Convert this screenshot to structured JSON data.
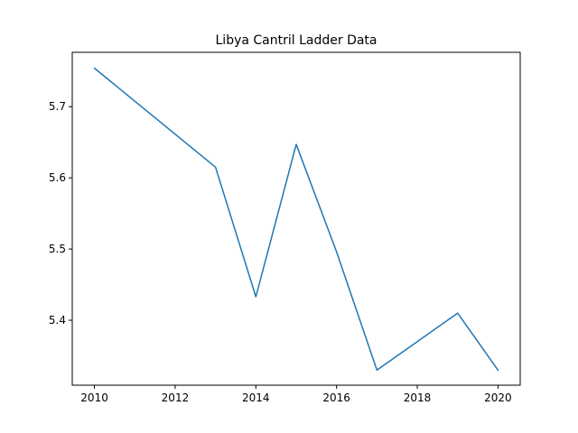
{
  "chart_data": {
    "type": "line",
    "title": "Libya Cantril Ladder Data",
    "xlabel": "",
    "ylabel": "",
    "xlim": [
      2009.45,
      2020.55
    ],
    "ylim": [
      5.3088,
      5.7763
    ],
    "x_ticks": [
      "2010",
      "2012",
      "2014",
      "2016",
      "2018",
      "2020"
    ],
    "y_ticks": [
      "5.4",
      "5.5",
      "5.6",
      "5.7"
    ],
    "grid": false,
    "legend": "none",
    "series": [
      {
        "color": "#1f77b4",
        "x": [
          2010,
          2013,
          2014,
          2015,
          2016,
          2017,
          2019,
          2020
        ],
        "y": [
          5.754,
          5.615,
          5.433,
          5.647,
          5.496,
          5.33,
          5.41,
          5.33
        ]
      }
    ]
  }
}
